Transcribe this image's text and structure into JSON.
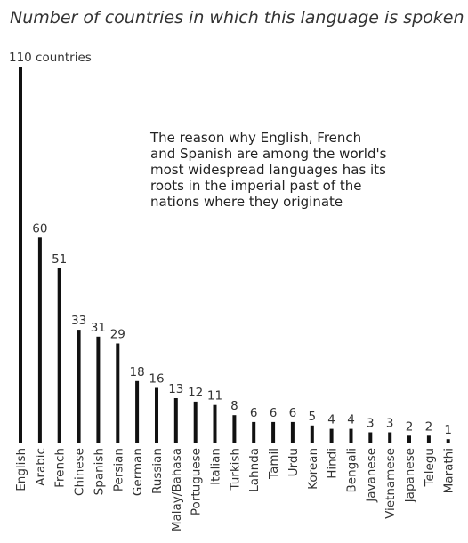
{
  "chart_data": {
    "type": "bar",
    "title": "Number of countries in which this language is spoken",
    "annotation_lines": [
      "The reason why English, French",
      "and Spanish are among the world's",
      "most widespread languages has its",
      "roots in the imperial past of the",
      "nations where they originate"
    ],
    "categories": [
      "English",
      "Arabic",
      "French",
      "Chinese",
      "Spanish",
      "Persian",
      "German",
      "Russian",
      "Malay/Bahasa",
      "Portuguese",
      "Italian",
      "Turkish",
      "Lahnda",
      "Tamil",
      "Urdu",
      "Korean",
      "Hindi",
      "Bengali",
      "Javanese",
      "Vietnamese",
      "Japanese",
      "Telegu",
      "Marathi"
    ],
    "values": [
      110,
      60,
      51,
      33,
      31,
      29,
      18,
      16,
      13,
      12,
      11,
      8,
      6,
      6,
      6,
      5,
      4,
      4,
      3,
      3,
      2,
      2,
      1
    ],
    "value_labels": [
      "110 countries",
      "60",
      "51",
      "33",
      "31",
      "29",
      "18",
      "16",
      "13",
      "12",
      "11",
      "8",
      "6",
      "6",
      "6",
      "5",
      "4",
      "4",
      "3",
      "3",
      "2",
      "2",
      "1"
    ],
    "ylim": [
      0,
      110
    ],
    "grid": false,
    "bar_color": "#111111"
  }
}
